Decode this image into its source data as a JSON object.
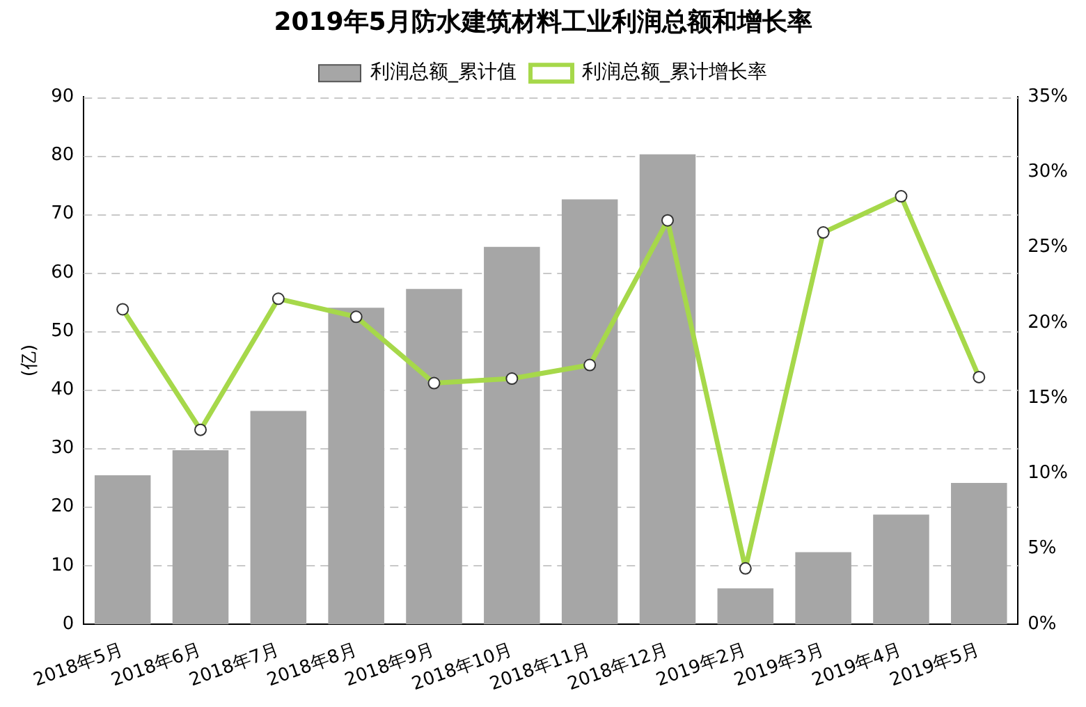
{
  "chart_data": {
    "type": "bar",
    "title": "2019年5月防水建筑材料工业利润总额和增长率",
    "ylabel": "(亿)",
    "categories": [
      "2018年5月",
      "2018年6月",
      "2018年7月",
      "2018年8月",
      "2018年9月",
      "2018年10月",
      "2018年11月",
      "2018年12月",
      "2019年2月",
      "2019年3月",
      "2019年4月",
      "2019年5月"
    ],
    "series": [
      {
        "name": "利润总额_累计值",
        "color": "#a6a6a6",
        "values": [
          25.4,
          29.7,
          36.4,
          54,
          57.2,
          64.4,
          72.5,
          80.2,
          6.1,
          12.3,
          18.7,
          24.1
        ]
      },
      {
        "name": "利润总额_累计增长率",
        "type": "line",
        "axis": "y2",
        "color": "#a6d84a",
        "values": [
          20.9,
          12.9,
          21.6,
          20.4,
          16.0,
          16.3,
          17.2,
          26.8,
          3.7,
          26.0,
          28.4,
          16.4
        ]
      }
    ],
    "ylim": [
      0,
      90
    ],
    "yticks": [
      0,
      10,
      20,
      30,
      40,
      50,
      60,
      70,
      80,
      90
    ],
    "y2lim": [
      0,
      35
    ],
    "y2ticks": [
      {
        "value": 0,
        "label": "0%"
      },
      {
        "value": 5,
        "label": "5%"
      },
      {
        "value": 10,
        "label": "10%"
      },
      {
        "value": 15,
        "label": "15%"
      },
      {
        "value": 20,
        "label": "20%"
      },
      {
        "value": 25,
        "label": "25%"
      },
      {
        "value": 30,
        "label": "30%"
      },
      {
        "value": 35,
        "label": "35%"
      }
    ],
    "grid": "y",
    "legend": "top",
    "marker": "circle"
  }
}
